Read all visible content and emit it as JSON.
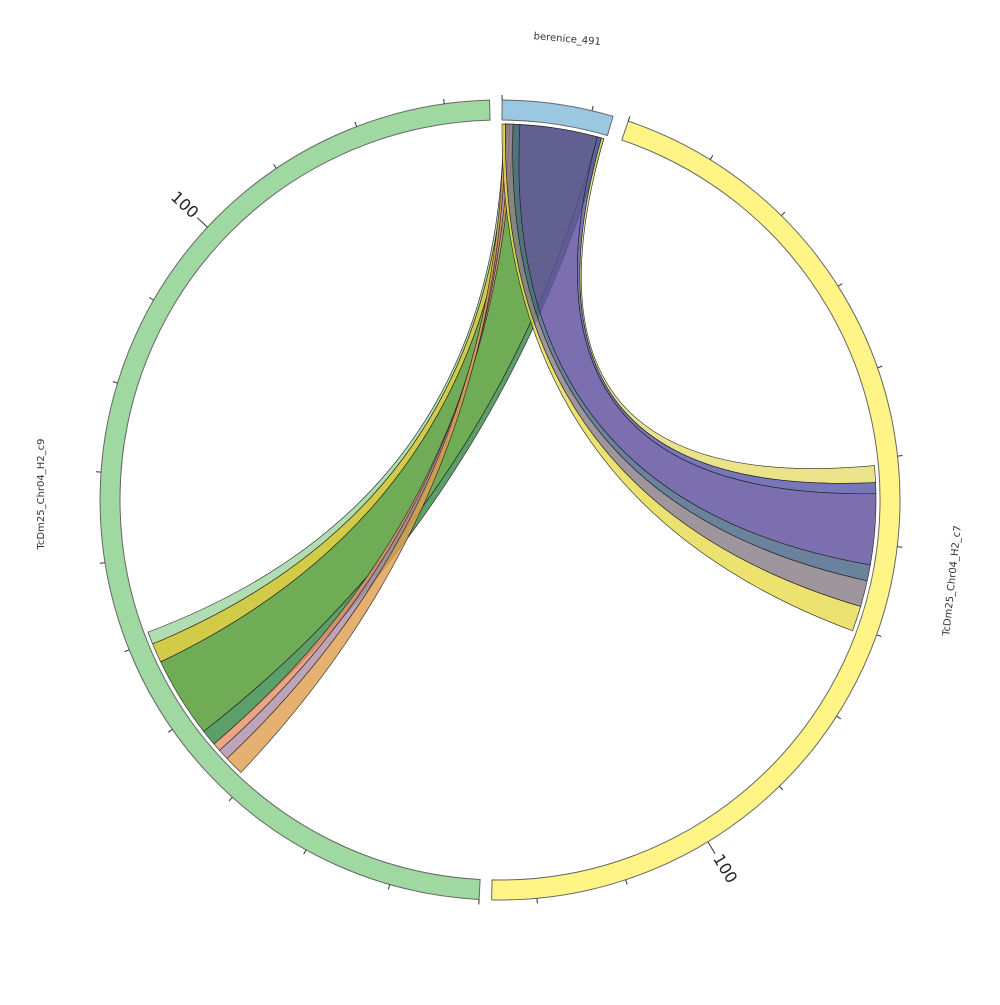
{
  "chart_data": {
    "type": "chord",
    "unit_degrees": 1.3,
    "segments": [
      {
        "name": "berenice_491",
        "start_deg": 0.3,
        "length": 12.4,
        "color": "#9ac8e2"
      },
      {
        "name": "TcDm25_Chr04_H2_c7",
        "start_deg": 18.7,
        "length": 125,
        "color": "#fff587"
      },
      {
        "name": "TcDm25_Chr04_H2_c9",
        "start_deg": 183,
        "length": 135,
        "color": "#a0d8a2"
      }
    ],
    "tick_interval": 10,
    "tick_labels": [
      {
        "segment": 1,
        "value": 100,
        "label": "100"
      },
      {
        "segment": 2,
        "value": 100,
        "label": "100"
      }
    ],
    "links": [
      {
        "source": [
          0,
          0.2,
          0.5
        ],
        "target": [
          2,
          49.6,
          51.1
        ],
        "color": "#9fd6a0"
      },
      {
        "source": [
          0,
          0.5,
          1.3
        ],
        "target": [
          2,
          47.3,
          49.6
        ],
        "color": "#c8c020"
      },
      {
        "source": [
          0,
          1.3,
          11.3
        ],
        "target": [
          2,
          37.7,
          47.3
        ],
        "color": "#4f9a30"
      },
      {
        "source": [
          0,
          11.3,
          12.1
        ],
        "target": [
          2,
          35.8,
          37.7
        ],
        "color": "#388a48"
      },
      {
        "source": [
          0,
          0.9,
          1.3
        ],
        "target": [
          2,
          34.8,
          35.8
        ],
        "color": "#e8906a"
      },
      {
        "source": [
          0,
          0.5,
          0.9
        ],
        "target": [
          2,
          33.5,
          34.8
        ],
        "color": "#b090a8"
      },
      {
        "source": [
          0,
          0.2,
          0.5
        ],
        "target": [
          2,
          31.2,
          33.5
        ],
        "color": "#e0a050"
      },
      {
        "source": [
          0,
          11.8,
          12.1
        ],
        "target": [
          1,
          50.8,
          52.8
        ],
        "color": "#e6dd70"
      },
      {
        "source": [
          0,
          11.3,
          11.8
        ],
        "target": [
          1,
          52.8,
          54.1
        ],
        "color": "#5858a8"
      },
      {
        "source": [
          0,
          2.1,
          11.3
        ],
        "target": [
          1,
          54.1,
          62.5
        ],
        "color": "#5f4f9e"
      },
      {
        "source": [
          0,
          1.3,
          2.1
        ],
        "target": [
          1,
          62.5,
          64.4
        ],
        "color": "#4a6688"
      },
      {
        "source": [
          0,
          0.4,
          1.3
        ],
        "target": [
          1,
          64.4,
          67.5
        ],
        "color": "#8a7f88"
      },
      {
        "source": [
          0,
          0.0,
          0.4
        ],
        "target": [
          1,
          67.5,
          70.5
        ],
        "color": "#e8dc50"
      }
    ]
  }
}
